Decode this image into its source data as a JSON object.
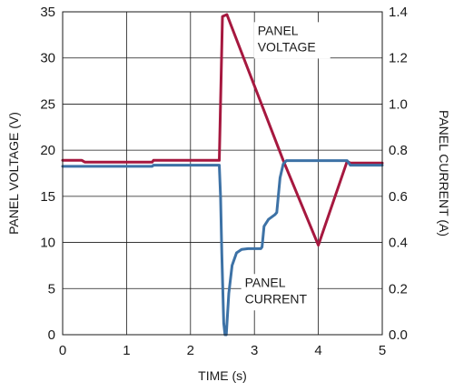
{
  "chart_data": {
    "type": "line",
    "title": "",
    "xlabel": "TIME (s)",
    "ylabel_left": "PANEL VOLTAGE (V)",
    "ylabel_right": "PANEL CURRENT (A)",
    "xlim": [
      0,
      5
    ],
    "ylim_left": [
      0,
      35
    ],
    "ylim_right": [
      0,
      1.4
    ],
    "x_ticks": [
      "0",
      "1",
      "2",
      "3",
      "4",
      "5"
    ],
    "y_left_ticks": [
      "0",
      "5",
      "10",
      "15",
      "20",
      "25",
      "30",
      "35"
    ],
    "y_right_ticks": [
      "0.0",
      "0.2",
      "0.4",
      "0.6",
      "0.8",
      "1.0",
      "1.2",
      "1.4"
    ],
    "grid": true,
    "colors": {
      "voltage": "#a6183f",
      "current": "#3d72a6"
    },
    "annotations": [
      {
        "lines": [
          "PANEL",
          "VOLTAGE"
        ],
        "x": 3.05,
        "y": 32.5
      },
      {
        "lines": [
          "PANEL",
          "CURRENT"
        ],
        "x": 2.85,
        "y": 5.2
      }
    ],
    "series": [
      {
        "id": "voltage",
        "axis": "left",
        "points": [
          [
            0,
            18.9
          ],
          [
            0.3,
            18.9
          ],
          [
            0.35,
            18.7
          ],
          [
            1.4,
            18.7
          ],
          [
            1.42,
            18.9
          ],
          [
            2.45,
            18.9
          ],
          [
            2.5,
            34.5
          ],
          [
            2.57,
            34.7
          ],
          [
            3.45,
            18.9
          ],
          [
            4.0,
            9.7
          ],
          [
            4.45,
            18.8
          ],
          [
            4.5,
            18.6
          ],
          [
            5.0,
            18.6
          ]
        ]
      },
      {
        "id": "current",
        "axis": "right",
        "points": [
          [
            0,
            0.73
          ],
          [
            1.4,
            0.73
          ],
          [
            1.42,
            0.735
          ],
          [
            2.45,
            0.735
          ],
          [
            2.47,
            0.6
          ],
          [
            2.49,
            0.35
          ],
          [
            2.52,
            0.05
          ],
          [
            2.54,
            0.0
          ],
          [
            2.56,
            0.0
          ],
          [
            2.6,
            0.18
          ],
          [
            2.65,
            0.3
          ],
          [
            2.72,
            0.355
          ],
          [
            2.8,
            0.37
          ],
          [
            2.9,
            0.373
          ],
          [
            3.1,
            0.373
          ],
          [
            3.12,
            0.38
          ],
          [
            3.15,
            0.47
          ],
          [
            3.22,
            0.5
          ],
          [
            3.32,
            0.52
          ],
          [
            3.35,
            0.53
          ],
          [
            3.4,
            0.68
          ],
          [
            3.45,
            0.74
          ],
          [
            3.5,
            0.755
          ],
          [
            4.45,
            0.755
          ],
          [
            4.5,
            0.735
          ],
          [
            5.0,
            0.735
          ]
        ]
      }
    ]
  }
}
